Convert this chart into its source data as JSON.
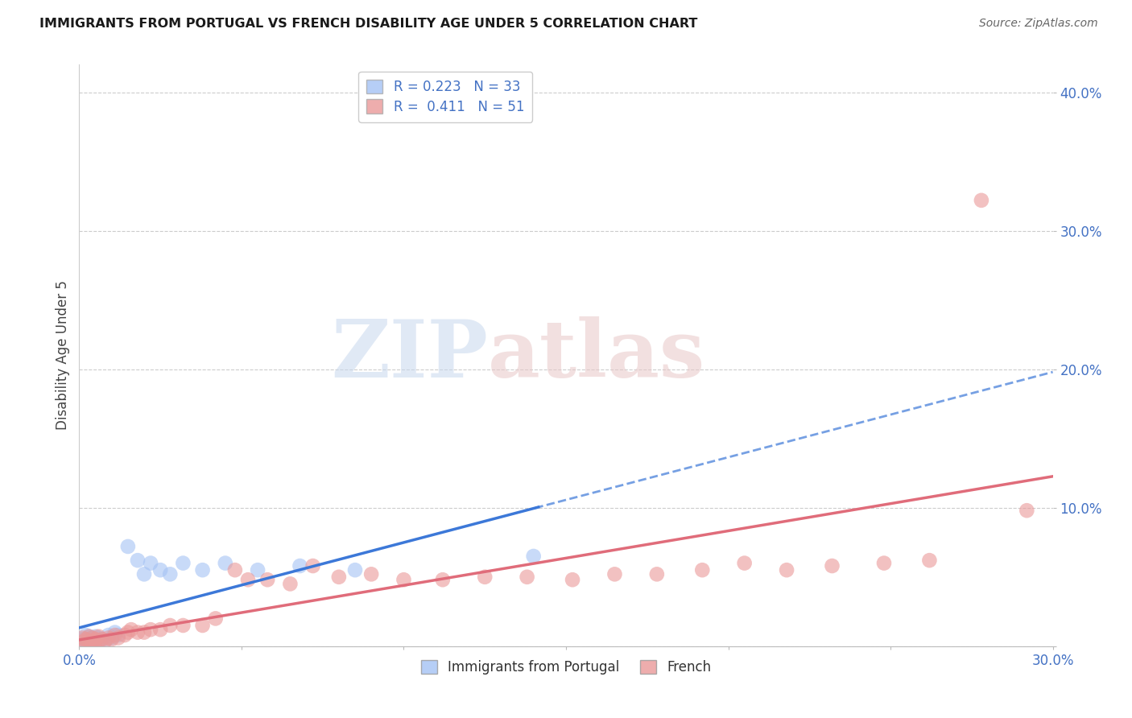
{
  "title": "IMMIGRANTS FROM PORTUGAL VS FRENCH DISABILITY AGE UNDER 5 CORRELATION CHART",
  "source": "Source: ZipAtlas.com",
  "ylabel": "Disability Age Under 5",
  "xlim": [
    0.0,
    0.3
  ],
  "ylim": [
    0.0,
    0.42
  ],
  "blue_R": 0.223,
  "blue_N": 33,
  "pink_R": 0.411,
  "pink_N": 51,
  "blue_color": "#a4c2f4",
  "pink_color": "#ea9999",
  "blue_line_color": "#3c78d8",
  "pink_line_color": "#e06c7a",
  "blue_scatter_x": [
    0.001,
    0.001,
    0.002,
    0.002,
    0.002,
    0.003,
    0.003,
    0.003,
    0.004,
    0.004,
    0.005,
    0.005,
    0.006,
    0.006,
    0.007,
    0.008,
    0.009,
    0.01,
    0.011,
    0.012,
    0.015,
    0.018,
    0.02,
    0.022,
    0.025,
    0.028,
    0.032,
    0.038,
    0.045,
    0.055,
    0.068,
    0.085,
    0.14
  ],
  "blue_scatter_y": [
    0.003,
    0.005,
    0.002,
    0.004,
    0.008,
    0.003,
    0.005,
    0.007,
    0.003,
    0.006,
    0.004,
    0.007,
    0.003,
    0.006,
    0.005,
    0.004,
    0.008,
    0.006,
    0.01,
    0.008,
    0.072,
    0.062,
    0.052,
    0.06,
    0.055,
    0.052,
    0.06,
    0.055,
    0.06,
    0.055,
    0.058,
    0.055,
    0.065
  ],
  "pink_scatter_x": [
    0.001,
    0.001,
    0.002,
    0.002,
    0.003,
    0.003,
    0.004,
    0.004,
    0.005,
    0.005,
    0.006,
    0.006,
    0.007,
    0.008,
    0.009,
    0.01,
    0.011,
    0.012,
    0.014,
    0.015,
    0.016,
    0.018,
    0.02,
    0.022,
    0.025,
    0.028,
    0.032,
    0.038,
    0.042,
    0.048,
    0.052,
    0.058,
    0.065,
    0.072,
    0.08,
    0.09,
    0.1,
    0.112,
    0.125,
    0.138,
    0.152,
    0.165,
    0.178,
    0.192,
    0.205,
    0.218,
    0.232,
    0.248,
    0.262,
    0.278,
    0.292
  ],
  "pink_scatter_y": [
    0.003,
    0.006,
    0.002,
    0.005,
    0.004,
    0.007,
    0.003,
    0.006,
    0.003,
    0.005,
    0.004,
    0.007,
    0.005,
    0.004,
    0.006,
    0.005,
    0.008,
    0.006,
    0.008,
    0.01,
    0.012,
    0.01,
    0.01,
    0.012,
    0.012,
    0.015,
    0.015,
    0.015,
    0.02,
    0.055,
    0.048,
    0.048,
    0.045,
    0.058,
    0.05,
    0.052,
    0.048,
    0.048,
    0.05,
    0.05,
    0.048,
    0.052,
    0.052,
    0.055,
    0.06,
    0.055,
    0.058,
    0.06,
    0.062,
    0.322,
    0.098
  ]
}
